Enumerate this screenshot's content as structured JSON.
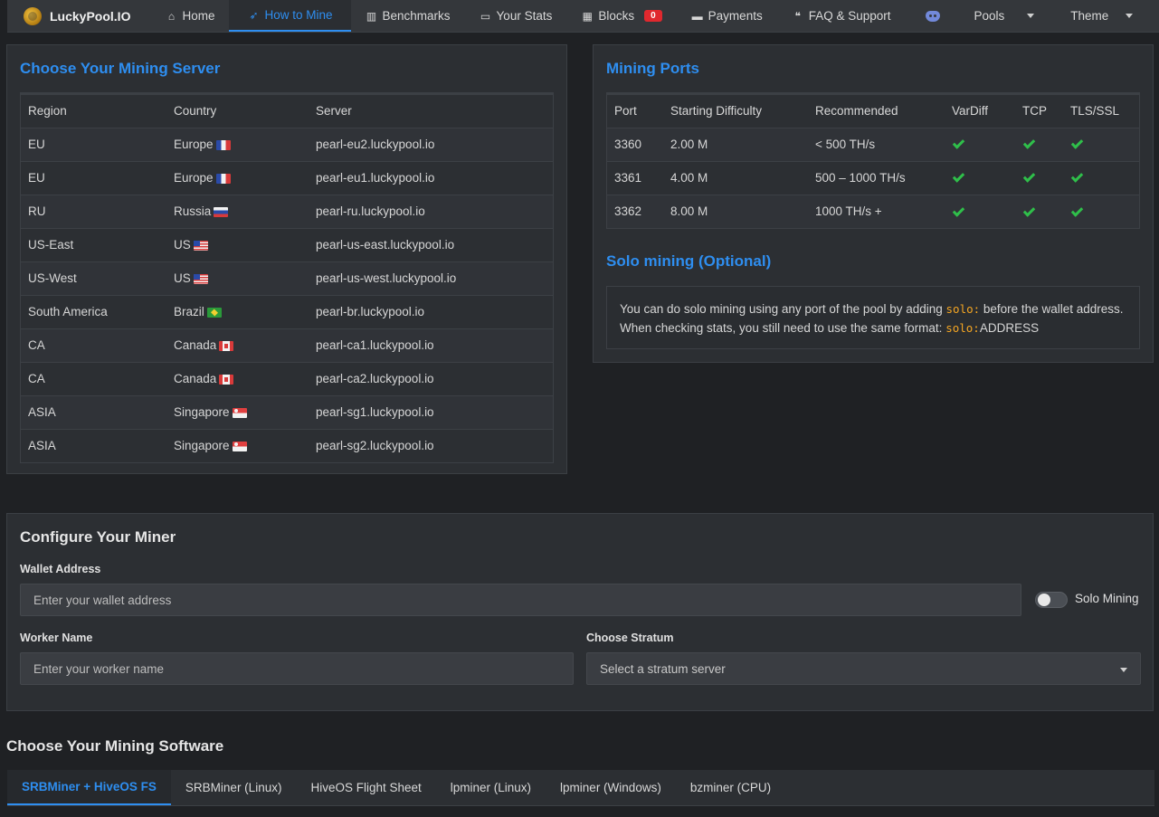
{
  "nav": {
    "brand": "LuckyPool.IO",
    "items": [
      {
        "label": "Home",
        "icon": "home-icon"
      },
      {
        "label": "How to Mine",
        "icon": "rocket-icon"
      },
      {
        "label": "Benchmarks",
        "icon": "bar-chart-icon"
      },
      {
        "label": "Your Stats",
        "icon": "desktop-icon"
      },
      {
        "label": "Blocks",
        "icon": "grid-icon",
        "badge": "0"
      },
      {
        "label": "Payments",
        "icon": "credit-card-icon"
      },
      {
        "label": "FAQ & Support",
        "icon": "comments-icon"
      },
      {
        "label": "",
        "icon": "discord-icon"
      },
      {
        "label": "Pools",
        "icon": "chevron-down-icon"
      },
      {
        "label": "Theme",
        "icon": "chevron-down-icon"
      }
    ],
    "accent": "#2e8ef0",
    "badge_color": "#e0282e"
  },
  "servers": {
    "title": "Choose Your Mining Server",
    "headers": [
      "Region",
      "Country",
      "Server"
    ],
    "rows": [
      {
        "region": "EU",
        "country": "Europe",
        "flag": "fr",
        "server": "pearl-eu2.luckypool.io"
      },
      {
        "region": "EU",
        "country": "Europe",
        "flag": "fr",
        "server": "pearl-eu1.luckypool.io"
      },
      {
        "region": "RU",
        "country": "Russia",
        "flag": "ru",
        "server": "pearl-ru.luckypool.io"
      },
      {
        "region": "US-East",
        "country": "US",
        "flag": "us",
        "server": "pearl-us-east.luckypool.io"
      },
      {
        "region": "US-West",
        "country": "US",
        "flag": "us",
        "server": "pearl-us-west.luckypool.io"
      },
      {
        "region": "South America",
        "country": "Brazil",
        "flag": "br",
        "server": "pearl-br.luckypool.io"
      },
      {
        "region": "CA",
        "country": "Canada",
        "flag": "ca",
        "server": "pearl-ca1.luckypool.io"
      },
      {
        "region": "CA",
        "country": "Canada",
        "flag": "ca",
        "server": "pearl-ca2.luckypool.io"
      },
      {
        "region": "ASIA",
        "country": "Singapore",
        "flag": "sg",
        "server": "pearl-sg1.luckypool.io"
      },
      {
        "region": "ASIA",
        "country": "Singapore",
        "flag": "sg",
        "server": "pearl-sg2.luckypool.io"
      }
    ]
  },
  "ports": {
    "title": "Mining Ports",
    "headers": [
      "Port",
      "Starting Difficulty",
      "Recommended",
      "VarDiff",
      "TCP",
      "TLS/SSL"
    ],
    "rows": [
      {
        "port": "3360",
        "difficulty": "2.00 M",
        "recommended": "< 500 TH/s",
        "vardiff": true,
        "tcp": true,
        "tls": true
      },
      {
        "port": "3361",
        "difficulty": "4.00 M",
        "recommended": "500 – 1000 TH/s",
        "vardiff": true,
        "tcp": true,
        "tls": true
      },
      {
        "port": "3362",
        "difficulty": "8.00 M",
        "recommended": "1000 TH/s +",
        "vardiff": true,
        "tcp": true,
        "tls": true
      }
    ]
  },
  "solo": {
    "title": "Solo mining (Optional)",
    "text1": "You can do solo mining using any port of the pool by adding ",
    "code1": "solo:",
    "text2": " before the wallet address.",
    "text3": "When checking stats, you still need to use the same format: ",
    "code2": "solo:",
    "text4": "ADDRESS"
  },
  "configure": {
    "title": "Configure Your Miner",
    "wallet_label": "Wallet Address",
    "wallet_placeholder": "Enter your wallet address",
    "solo_toggle_label": "Solo Mining",
    "worker_label": "Worker Name",
    "worker_placeholder": "Enter your worker name",
    "stratum_label": "Choose Stratum",
    "stratum_placeholder": "Select a stratum server"
  },
  "software": {
    "title": "Choose Your Mining Software",
    "tabs": [
      "SRBMiner + HiveOS FS",
      "SRBMiner (Linux)",
      "HiveOS Flight Sheet",
      "lpminer (Linux)",
      "lpminer (Windows)",
      "bzminer (CPU)"
    ]
  }
}
